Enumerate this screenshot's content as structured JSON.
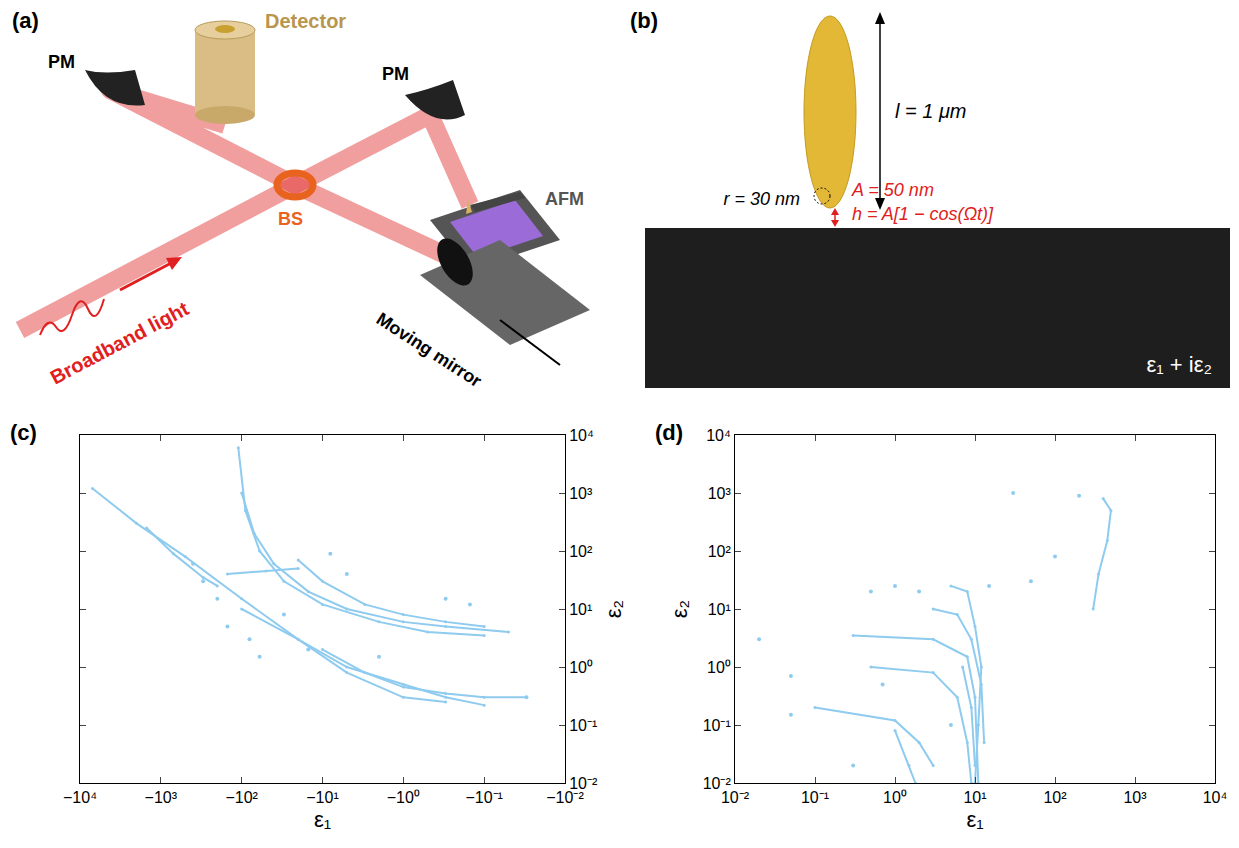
{
  "panels": {
    "a": {
      "panel_label": "(a)",
      "detector": "Detector",
      "pm_left": "PM",
      "pm_right": "PM",
      "bs": "BS",
      "afm": "AFM",
      "source": "Broadband light",
      "mirror": "Moving mirror"
    },
    "b": {
      "panel_label": "(b)",
      "length": "l = 1 μm",
      "radius": "r = 30 nm",
      "amplitude": "A = 50 nm",
      "height": "h = A[1 − cos(Ωt)]",
      "substrate": "ε₁ + iε₂"
    }
  },
  "chart_data": [
    {
      "panel_label": "(c)",
      "type": "scatter",
      "x_label": "ε₁",
      "y_label": "ε₂",
      "log": true,
      "color": "#8ecbef",
      "xlim": [
        -10000,
        -0.01
      ],
      "ylim": [
        0.01,
        10000
      ],
      "xticks": [
        {
          "value": -10000,
          "label": "−10⁴"
        },
        {
          "value": -1000,
          "label": "−10³"
        },
        {
          "value": -100,
          "label": "−10²"
        },
        {
          "value": -10,
          "label": "−10¹"
        },
        {
          "value": -1,
          "label": "−10⁰"
        },
        {
          "value": -0.1,
          "label": "−10⁻¹"
        },
        {
          "value": -0.01,
          "label": "−10⁻²"
        }
      ],
      "yticks": [
        {
          "value": 0.01,
          "label": "10⁻²"
        },
        {
          "value": 0.1,
          "label": "10⁻¹"
        },
        {
          "value": 1,
          "label": "10⁰"
        },
        {
          "value": 10,
          "label": "10¹"
        },
        {
          "value": 100,
          "label": "10²"
        },
        {
          "value": 1000,
          "label": "10³"
        },
        {
          "value": 10000,
          "label": "10⁴"
        }
      ],
      "series": [
        {
          "type": "line",
          "x": [
            -7000,
            -2000,
            -500,
            -100,
            -20,
            -5,
            -1,
            -0.3
          ],
          "values": [
            1200,
            300,
            80,
            15,
            3,
            0.8,
            0.3,
            0.25
          ]
        },
        {
          "type": "line",
          "x": [
            -1500,
            -700,
            -300,
            -200
          ],
          "values": [
            250,
            90,
            35,
            25
          ]
        },
        {
          "type": "line",
          "x": [
            -110,
            -90,
            -60,
            -30,
            -10,
            -2,
            -0.5,
            -0.1
          ],
          "values": [
            6000,
            500,
            100,
            30,
            12,
            6,
            4,
            3.5
          ]
        },
        {
          "type": "line",
          "x": [
            -100,
            -70,
            -40,
            -15,
            -5,
            -1,
            -0.3,
            -0.05
          ],
          "values": [
            1000,
            200,
            60,
            20,
            10,
            6,
            5,
            4
          ]
        },
        {
          "type": "line",
          "x": [
            -20,
            -10,
            -3,
            -1,
            -0.3,
            -0.1
          ],
          "values": [
            70,
            30,
            12,
            8,
            6,
            5
          ]
        },
        {
          "type": "line",
          "x": [
            -150,
            -50,
            -20
          ],
          "values": [
            40,
            45,
            50
          ]
        },
        {
          "type": "line",
          "x": [
            -100,
            -20,
            -5,
            -1,
            -0.3,
            -0.1
          ],
          "values": [
            10,
            3,
            1,
            0.5,
            0.3,
            0.22
          ]
        },
        {
          "type": "line",
          "x": [
            -10,
            -3,
            -1,
            -0.3,
            -0.1,
            -0.03
          ],
          "values": [
            2,
            0.8,
            0.45,
            0.35,
            0.3,
            0.3
          ]
        },
        {
          "type": "scatter",
          "x": [
            -300,
            -200,
            -150,
            -80,
            -30,
            -15,
            -8,
            -0.3,
            -0.15,
            -0.03,
            -60,
            -400,
            -5,
            -2
          ],
          "values": [
            30,
            15,
            5,
            3,
            8,
            2,
            90,
            15,
            12,
            0.3,
            1.5,
            60,
            40,
            1.5
          ]
        }
      ]
    },
    {
      "panel_label": "(d)",
      "type": "scatter",
      "x_label": "ε₁",
      "y_label": "ε₂",
      "log": true,
      "color": "#8ecbef",
      "xlim": [
        0.01,
        10000
      ],
      "ylim": [
        0.01,
        10000
      ],
      "xticks": [
        {
          "value": 0.01,
          "label": "10⁻²"
        },
        {
          "value": 0.1,
          "label": "10⁻¹"
        },
        {
          "value": 1,
          "label": "10⁰"
        },
        {
          "value": 10,
          "label": "10¹"
        },
        {
          "value": 100,
          "label": "10²"
        },
        {
          "value": 1000,
          "label": "10³"
        },
        {
          "value": 10000,
          "label": "10⁴"
        }
      ],
      "yticks": [
        {
          "value": 0.01,
          "label": "10⁻²"
        },
        {
          "value": 0.1,
          "label": "10⁻¹"
        },
        {
          "value": 1,
          "label": "10⁰"
        },
        {
          "value": 10,
          "label": "10¹"
        },
        {
          "value": 100,
          "label": "10²"
        },
        {
          "value": 1000,
          "label": "10³"
        },
        {
          "value": 10000,
          "label": "10⁴"
        }
      ],
      "series": [
        {
          "type": "line",
          "x": [
            400,
            500,
            450,
            350,
            300
          ],
          "values": [
            800,
            500,
            150,
            40,
            10
          ]
        },
        {
          "type": "line",
          "x": [
            0.3,
            3,
            8,
            10,
            11
          ],
          "values": [
            3.5,
            3,
            1.5,
            0.3,
            0.01
          ]
        },
        {
          "type": "line",
          "x": [
            0.5,
            3,
            6,
            8,
            9
          ],
          "values": [
            1,
            0.8,
            0.3,
            0.05,
            0.01
          ]
        },
        {
          "type": "line",
          "x": [
            0.1,
            1,
            2,
            3
          ],
          "values": [
            0.2,
            0.12,
            0.05,
            0.02
          ]
        },
        {
          "type": "line",
          "x": [
            1,
            1.5,
            1.8
          ],
          "values": [
            0.08,
            0.02,
            0.01
          ]
        },
        {
          "type": "line",
          "x": [
            5,
            8,
            10,
            12,
            11,
            10
          ],
          "values": [
            25,
            20,
            5,
            1,
            0.1,
            0.01
          ]
        },
        {
          "type": "line",
          "x": [
            3,
            6,
            9,
            12,
            13
          ],
          "values": [
            10,
            8,
            3,
            0.5,
            0.05
          ]
        },
        {
          "type": "line",
          "x": [
            7,
            9,
            10
          ],
          "values": [
            1,
            0.2,
            0.02
          ]
        },
        {
          "type": "scatter",
          "x": [
            0.02,
            0.05,
            0.3,
            0.05,
            0.5,
            30,
            200,
            100,
            50,
            2,
            1,
            15,
            0.7,
            5
          ],
          "values": [
            3,
            0.7,
            0.02,
            0.15,
            20,
            1000,
            900,
            80,
            30,
            20,
            25,
            25,
            0.5,
            0.1
          ]
        }
      ]
    }
  ]
}
